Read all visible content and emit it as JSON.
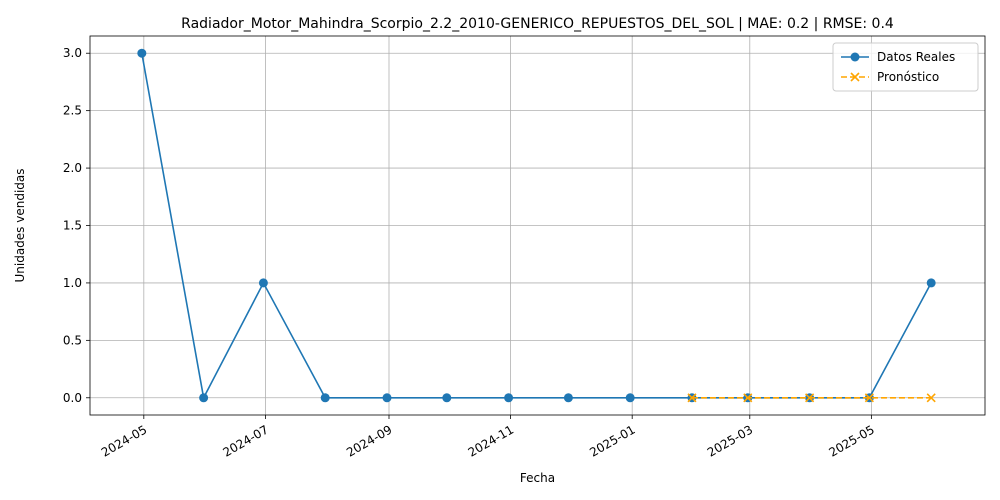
{
  "chart_data": {
    "type": "line",
    "title": "Radiador_Motor_Mahindra_Scorpio_2.2_2010-GENERICO_REPUESTOS_DEL_SOL | MAE: 0.2 | RMSE: 0.4",
    "xlabel": "Fecha",
    "ylabel": "Unidades vendidas",
    "xlim": [
      "2024-04-04",
      "2025-06-27"
    ],
    "ylim": [
      -0.15,
      3.15
    ],
    "grid": true,
    "legend_position": "top-right",
    "x_ticks": [
      "2024-05",
      "2024-07",
      "2024-09",
      "2024-11",
      "2025-01",
      "2025-03",
      "2025-05"
    ],
    "y_ticks": [
      "0.0",
      "0.5",
      "1.0",
      "1.5",
      "2.0",
      "2.5",
      "3.0"
    ],
    "series": [
      {
        "name": "Datos Reales",
        "color": "#1f77b4",
        "line_style": "solid",
        "marker": "circle",
        "x": [
          "2024-04-30",
          "2024-05-31",
          "2024-06-30",
          "2024-07-31",
          "2024-08-31",
          "2024-09-30",
          "2024-10-31",
          "2024-11-30",
          "2024-12-31",
          "2025-01-31",
          "2025-02-28",
          "2025-03-31",
          "2025-04-30",
          "2025-05-31"
        ],
        "values": [
          3,
          0,
          1,
          0,
          0,
          0,
          0,
          0,
          0,
          0,
          0,
          0,
          0,
          1
        ]
      },
      {
        "name": "Pronóstico",
        "color": "#ffa500",
        "line_style": "dashed",
        "marker": "x",
        "x": [
          "2025-01-31",
          "2025-02-28",
          "2025-03-31",
          "2025-04-30",
          "2025-05-31"
        ],
        "values": [
          0,
          0,
          0,
          0,
          0
        ]
      }
    ]
  }
}
